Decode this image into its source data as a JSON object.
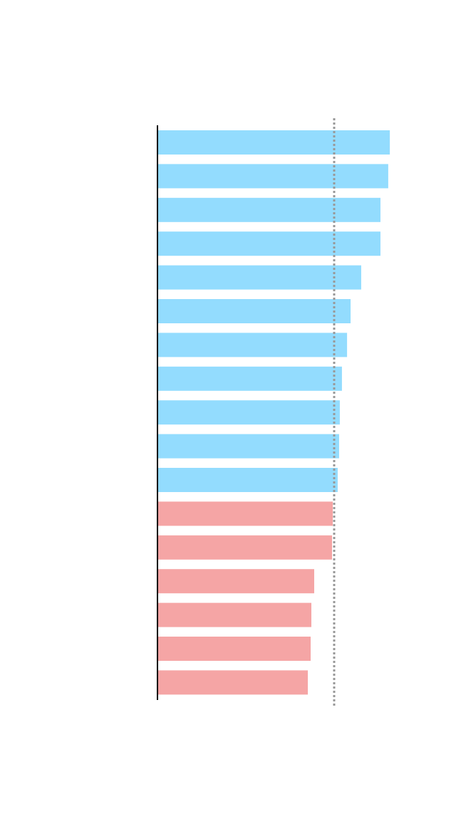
{
  "chart_data": {
    "type": "barh",
    "categories": [
      null,
      null,
      null,
      null,
      null,
      null,
      null,
      null,
      null,
      null,
      null,
      null,
      null,
      null,
      null,
      null,
      null
    ],
    "values": [
      131.5,
      130.6,
      126.2,
      126.2,
      115.3,
      109.3,
      107.3,
      104.4,
      103.2,
      102.8,
      102,
      99.2,
      98.8,
      88.7,
      87.1,
      86.7,
      85.1
    ],
    "colors": [
      "#93dcfe",
      "#93dcfe",
      "#93dcfe",
      "#93dcfe",
      "#93dcfe",
      "#93dcfe",
      "#93dcfe",
      "#93dcfe",
      "#93dcfe",
      "#93dcfe",
      "#93dcfe",
      "#f5a5a5",
      "#f5a5a5",
      "#f5a5a5",
      "#f5a5a5",
      "#f5a5a5",
      "#f5a5a5"
    ],
    "reference": 100,
    "reference_color": "#999999",
    "xlim": [
      0,
      140
    ]
  }
}
